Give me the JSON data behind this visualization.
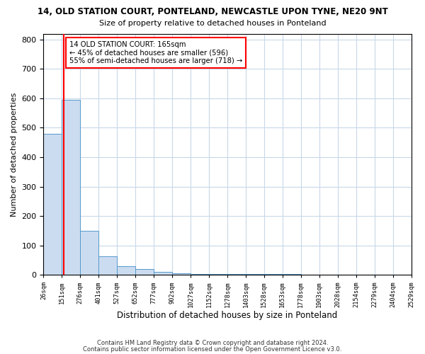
{
  "title1": "14, OLD STATION COURT, PONTELAND, NEWCASTLE UPON TYNE, NE20 9NT",
  "title2": "Size of property relative to detached houses in Ponteland",
  "xlabel": "Distribution of detached houses by size in Ponteland",
  "ylabel": "Number of detached properties",
  "bin_edges": [
    26,
    151,
    276,
    401,
    527,
    652,
    777,
    902,
    1027,
    1152,
    1278,
    1403,
    1528,
    1653,
    1778,
    1903,
    2028,
    2154,
    2279,
    2404,
    2529
  ],
  "bar_heights": [
    480,
    595,
    150,
    62,
    30,
    20,
    10,
    6,
    4,
    3,
    3,
    2,
    2,
    2,
    1,
    1,
    1,
    1,
    1,
    1
  ],
  "bar_color": "#ccdcf0",
  "bar_edge_color": "#5599cc",
  "red_line_x": 165,
  "annotation_line1": "14 OLD STATION COURT: 165sqm",
  "annotation_line2": "← 45% of detached houses are smaller (596)",
  "annotation_line3": "55% of semi-detached houses are larger (718) →",
  "annotation_box_color": "white",
  "annotation_border_color": "red",
  "vline_color": "red",
  "ylim": [
    0,
    820
  ],
  "yticks": [
    0,
    100,
    200,
    300,
    400,
    500,
    600,
    700,
    800
  ],
  "footnote1": "Contains HM Land Registry data © Crown copyright and database right 2024.",
  "footnote2": "Contains public sector information licensed under the Open Government Licence v3.0."
}
